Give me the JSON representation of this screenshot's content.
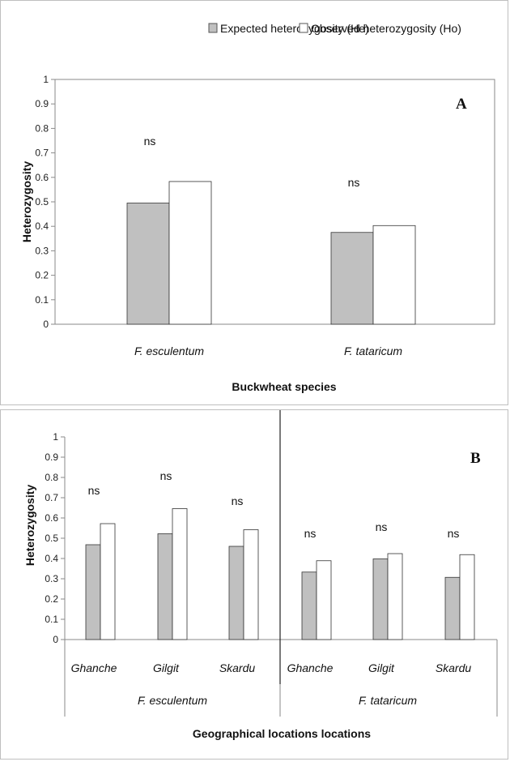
{
  "legend": {
    "items": [
      {
        "label": "Expected heterozygosity (He)",
        "color": "#c0c0c0"
      },
      {
        "label": "Observed heterozygosity (Ho)",
        "color": "#ffffff"
      }
    ]
  },
  "chart_data": [
    {
      "type": "bar",
      "panel_label": "A",
      "categories": [
        "F. esculentum",
        "F. tataricum"
      ],
      "series": [
        {
          "name": "Expected heterozygosity (He)",
          "values": [
            0.495,
            0.375
          ]
        },
        {
          "name": "Observed heterozygosity (Ho)",
          "values": [
            0.583,
            0.403
          ]
        }
      ],
      "annotations": [
        "ns",
        "ns"
      ],
      "xlabel": "Buckwheat species",
      "ylabel": "Heterozygosity",
      "ylim": [
        0,
        1
      ],
      "yticks": [
        "0",
        "0.1",
        "0.2",
        "0.3",
        "0.4",
        "0.5",
        "0.6",
        "0.7",
        "0.8",
        "0.9",
        "1"
      ],
      "grid": false
    },
    {
      "type": "bar",
      "panel_label": "B",
      "categories": [
        "Ghanche",
        "Gilgit",
        "Skardu",
        "Ghanche",
        "Gilgit",
        "Skardu"
      ],
      "groups": [
        {
          "label": "F. esculentum",
          "span": 3
        },
        {
          "label": "F. tataricum",
          "span": 3
        }
      ],
      "series": [
        {
          "name": "Expected heterozygosity (He)",
          "values": [
            0.468,
            0.522,
            0.46,
            0.333,
            0.398,
            0.307
          ]
        },
        {
          "name": "Observed heterozygosity (Ho)",
          "values": [
            0.572,
            0.646,
            0.542,
            0.389,
            0.424,
            0.419
          ]
        }
      ],
      "annotations": [
        "ns",
        "ns",
        "ns",
        "ns",
        "ns",
        "ns"
      ],
      "xlabel": "Geographical locations locations",
      "ylabel": "Heterozygosity",
      "ylim": [
        0,
        1
      ],
      "yticks": [
        "0",
        "0.1",
        "0.2",
        "0.3",
        "0.4",
        "0.5",
        "0.6",
        "0.7",
        "0.8",
        "0.9",
        "1"
      ],
      "grid": false
    }
  ]
}
